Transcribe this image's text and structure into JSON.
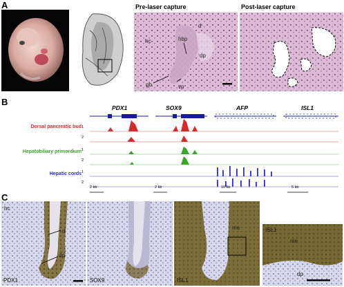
{
  "panels": {
    "a": {
      "letter": "A",
      "pre_title": "Pre-laser capture",
      "post_title": "Post-laser capture",
      "labels": {
        "hc": "hc",
        "hbp": "hbp",
        "d": "d",
        "dp": "dp",
        "gb": "gb",
        "vp": "vp"
      }
    },
    "b": {
      "letter": "B",
      "genes": [
        "PDX1",
        "SOX9",
        "AFP",
        "ISL1"
      ],
      "tracks": [
        {
          "name": "Dorsal pancreatic bud",
          "color": "#d42a2a",
          "reps": [
            "1",
            "2"
          ]
        },
        {
          "name": "Hepatobiliary primordium",
          "color": "#3aa52b",
          "reps": [
            "1",
            "2"
          ]
        },
        {
          "name": "Hepatic cords",
          "color": "#2a2ad6",
          "reps": [
            "1",
            "2"
          ]
        }
      ],
      "scales": [
        "2 kb",
        "2 kb",
        "10 kb",
        "5 kb"
      ]
    },
    "c": {
      "letter": "C",
      "stains": [
        "PDX1",
        "SOX9",
        "ISL1",
        "ISL1"
      ],
      "labels": {
        "hc": "hc",
        "d": "d",
        "dp": "dp",
        "me": "me",
        "me2": "me",
        "dp2": "dp"
      }
    }
  }
}
